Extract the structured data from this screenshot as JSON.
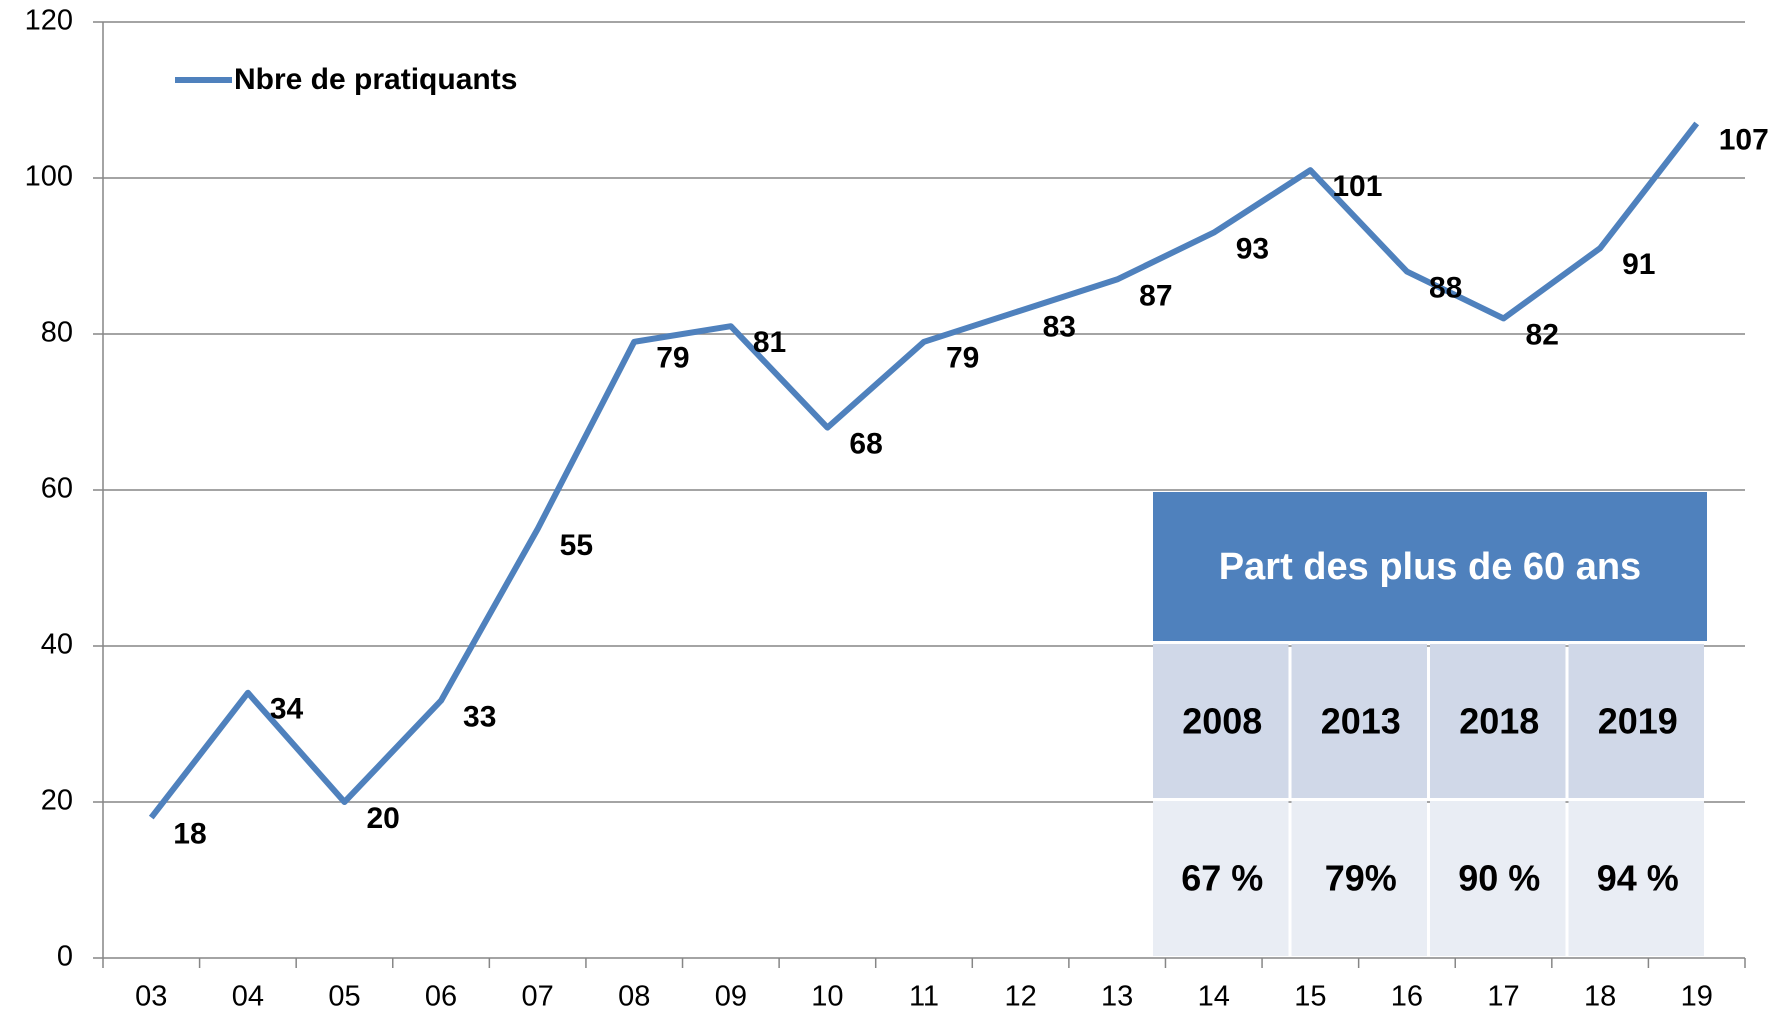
{
  "chart_data": {
    "type": "line",
    "categories": [
      "03",
      "04",
      "05",
      "06",
      "07",
      "08",
      "09",
      "10",
      "11",
      "12",
      "13",
      "14",
      "15",
      "16",
      "17",
      "18",
      "19"
    ],
    "series": [
      {
        "name": "Nbre de pratiquants",
        "color": "#4f81bd",
        "values": [
          18,
          34,
          20,
          33,
          55,
          79,
          81,
          68,
          79,
          83,
          87,
          93,
          101,
          88,
          82,
          91,
          107
        ]
      }
    ],
    "ylim": [
      0,
      120
    ],
    "yticks": [
      0,
      20,
      40,
      60,
      80,
      100,
      120
    ],
    "grid": true,
    "legend": "top-left",
    "inset_table": {
      "title": "Part des plus de 60 ans",
      "columns": [
        "2008",
        "2013",
        "2018",
        "2019"
      ],
      "values": [
        67,
        79,
        90,
        94
      ],
      "value_labels": [
        "67 %",
        "79%",
        "90 %",
        "94 %"
      ]
    }
  }
}
